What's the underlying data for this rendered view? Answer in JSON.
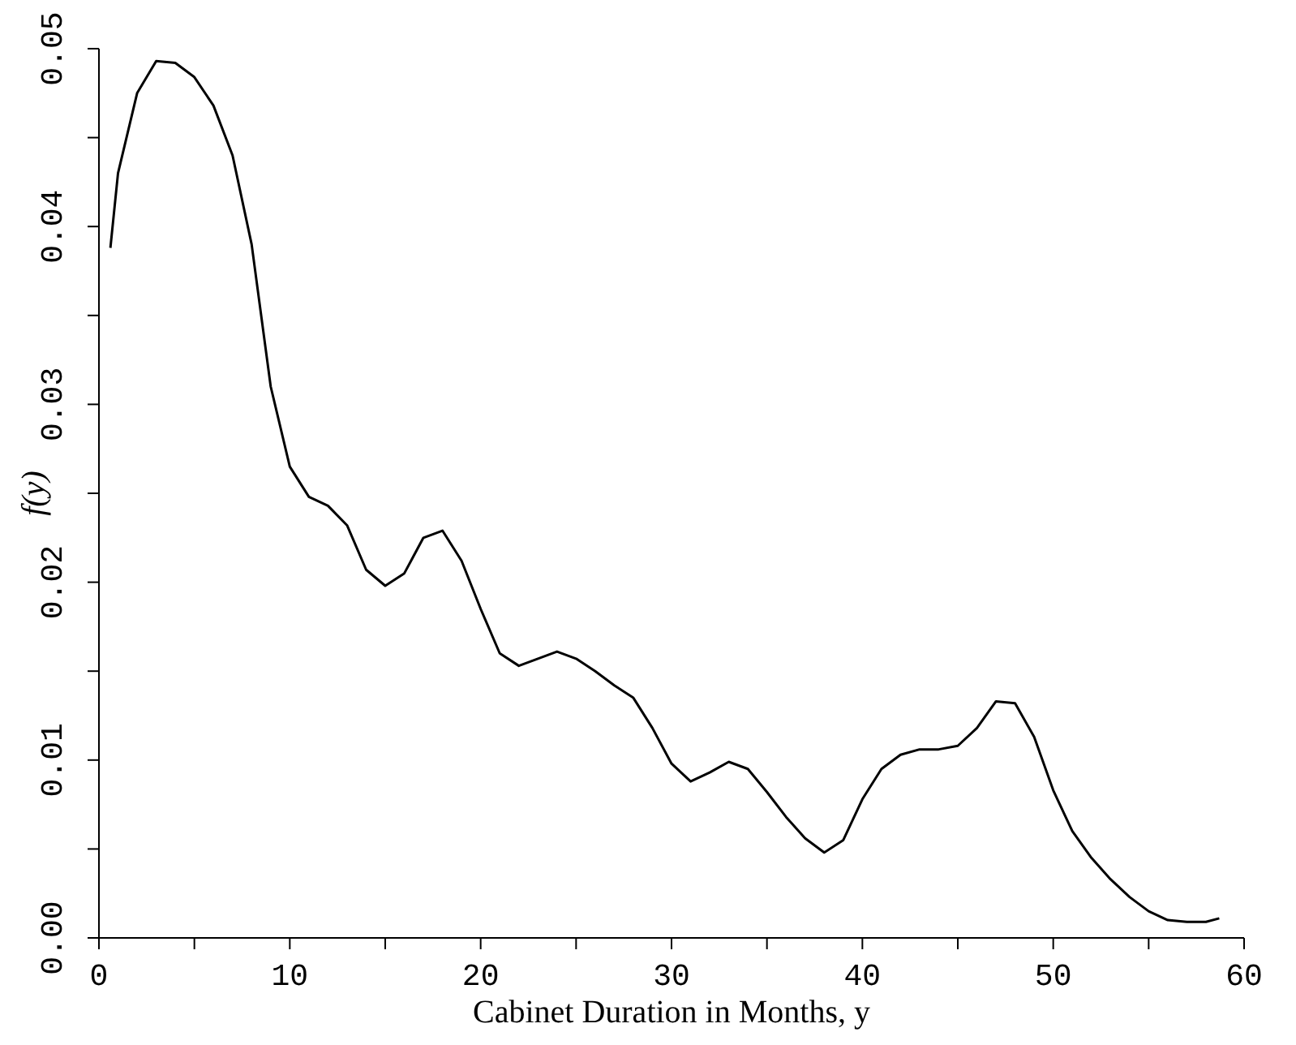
{
  "chart_data": {
    "type": "line",
    "xlabel": "Cabinet Duration in Months, y",
    "ylabel": "f(y)",
    "x": [
      0.6,
      1,
      2,
      3,
      4,
      5,
      6,
      7,
      8,
      9,
      10,
      11,
      12,
      13,
      14,
      15,
      16,
      17,
      18,
      19,
      20,
      21,
      22,
      23,
      24,
      25,
      26,
      27,
      28,
      29,
      30,
      31,
      32,
      33,
      34,
      35,
      36,
      37,
      38,
      39,
      40,
      41,
      42,
      43,
      44,
      45,
      46,
      47,
      48,
      49,
      50,
      51,
      52,
      53,
      54,
      55,
      56,
      57,
      58,
      58.7
    ],
    "series": [
      {
        "color": "#000000",
        "values": [
          0.0388,
          0.043,
          0.0475,
          0.0493,
          0.0492,
          0.0484,
          0.0468,
          0.044,
          0.039,
          0.031,
          0.0265,
          0.0248,
          0.0243,
          0.0232,
          0.0207,
          0.0198,
          0.0205,
          0.0225,
          0.0229,
          0.0212,
          0.0185,
          0.016,
          0.0153,
          0.0157,
          0.0161,
          0.0157,
          0.015,
          0.0142,
          0.0135,
          0.0118,
          0.0098,
          0.0088,
          0.0093,
          0.0099,
          0.0095,
          0.0082,
          0.0068,
          0.0056,
          0.0048,
          0.0055,
          0.0078,
          0.0095,
          0.0103,
          0.0106,
          0.0106,
          0.0108,
          0.0118,
          0.0133,
          0.0132,
          0.0113,
          0.0083,
          0.006,
          0.0045,
          0.0033,
          0.0023,
          0.0015,
          0.001,
          0.0009,
          0.0009,
          0.0011
        ]
      }
    ],
    "xlim": [
      0,
      60
    ],
    "xticks": [
      0,
      {
        "value": 5,
        "label": null
      },
      10,
      {
        "value": 15,
        "label": null
      },
      20,
      {
        "value": 25,
        "label": null
      },
      30,
      {
        "value": 35,
        "label": null
      },
      40,
      {
        "value": 45,
        "label": null
      },
      50,
      {
        "value": 55,
        "label": null
      },
      60
    ],
    "ylim": [
      0,
      0.05
    ],
    "yticks": [
      {
        "value": 0,
        "label": "0.00"
      },
      {
        "value": 0.005,
        "label": null
      },
      {
        "value": 0.01,
        "label": "0.01"
      },
      {
        "value": 0.015,
        "label": null
      },
      {
        "value": 0.02,
        "label": "0.02"
      },
      {
        "value": 0.025,
        "label": null
      },
      {
        "value": 0.03,
        "label": "0.03"
      },
      {
        "value": 0.035,
        "label": null
      },
      {
        "value": 0.04,
        "label": "0.04"
      },
      {
        "value": 0.045,
        "label": null
      },
      {
        "value": 0.05,
        "label": "0.05"
      }
    ],
    "grid": false,
    "legend": false,
    "marker": "none",
    "line_style": "solid"
  }
}
